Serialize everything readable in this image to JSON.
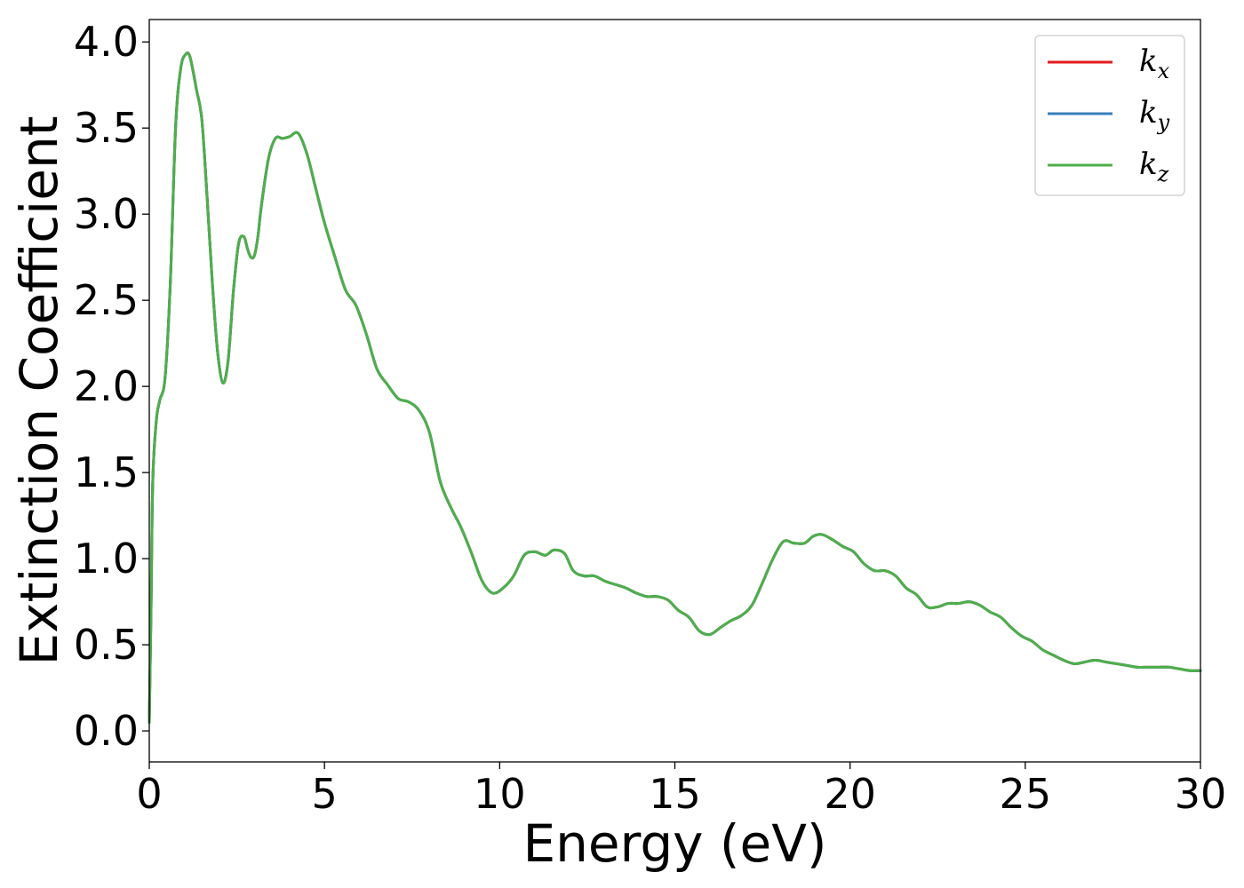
{
  "chart_data": {
    "type": "line",
    "xlabel": "Energy (eV)",
    "ylabel": "Extinction Coefficient",
    "xlim": [
      0,
      30
    ],
    "ylim": [
      -0.18,
      4.13
    ],
    "xticks": [
      0,
      5,
      10,
      15,
      20,
      25,
      30
    ],
    "xtick_labels": [
      "0",
      "5",
      "10",
      "15",
      "20",
      "25",
      "30"
    ],
    "yticks": [
      0.0,
      0.5,
      1.0,
      1.5,
      2.0,
      2.5,
      3.0,
      3.5,
      4.0
    ],
    "ytick_labels": [
      "0.0",
      "0.5",
      "1.0",
      "1.5",
      "2.0",
      "2.5",
      "3.0",
      "3.5",
      "4.0"
    ],
    "grid": false,
    "legend_position": "top-right",
    "x": [
      0.0,
      0.05,
      0.1,
      0.2,
      0.3,
      0.45,
      0.6,
      0.75,
      0.9,
      1.05,
      1.15,
      1.25,
      1.35,
      1.5,
      1.65,
      1.8,
      1.95,
      2.1,
      2.25,
      2.4,
      2.55,
      2.7,
      2.8,
      2.9,
      3.0,
      3.1,
      3.2,
      3.4,
      3.6,
      3.8,
      4.0,
      4.25,
      4.5,
      4.75,
      5.0,
      5.3,
      5.6,
      5.9,
      6.2,
      6.5,
      6.8,
      7.1,
      7.4,
      7.7,
      8.0,
      8.3,
      8.6,
      8.9,
      9.2,
      9.5,
      9.8,
      10.1,
      10.4,
      10.7,
      11.0,
      11.3,
      11.55,
      11.85,
      12.1,
      12.4,
      12.7,
      13.0,
      13.3,
      13.6,
      13.9,
      14.2,
      14.5,
      14.8,
      15.1,
      15.4,
      15.7,
      16.0,
      16.3,
      16.6,
      16.9,
      17.2,
      17.5,
      17.8,
      18.1,
      18.4,
      18.7,
      18.95,
      19.2,
      19.5,
      19.8,
      20.1,
      20.4,
      20.7,
      21.0,
      21.3,
      21.6,
      21.9,
      22.2,
      22.5,
      22.8,
      23.1,
      23.4,
      23.7,
      24.0,
      24.3,
      24.6,
      24.9,
      25.2,
      25.5,
      25.8,
      26.1,
      26.4,
      26.7,
      27.0,
      27.3,
      27.6,
      27.9,
      28.2,
      28.5,
      28.8,
      29.1,
      29.4,
      29.7,
      30.0
    ],
    "series": [
      {
        "name": "k_x",
        "color": "#e41a1c",
        "values": [
          0.05,
          0.7,
          1.45,
          1.8,
          1.92,
          2.05,
          2.6,
          3.5,
          3.85,
          3.93,
          3.92,
          3.83,
          3.72,
          3.55,
          3.1,
          2.6,
          2.2,
          2.02,
          2.15,
          2.55,
          2.83,
          2.87,
          2.8,
          2.75,
          2.76,
          2.87,
          3.05,
          3.32,
          3.44,
          3.44,
          3.45,
          3.47,
          3.35,
          3.15,
          2.95,
          2.75,
          2.56,
          2.47,
          2.3,
          2.1,
          2.01,
          1.93,
          1.91,
          1.86,
          1.73,
          1.45,
          1.3,
          1.18,
          1.03,
          0.87,
          0.8,
          0.83,
          0.9,
          1.02,
          1.04,
          1.02,
          1.05,
          1.03,
          0.93,
          0.9,
          0.9,
          0.87,
          0.85,
          0.83,
          0.8,
          0.78,
          0.78,
          0.76,
          0.7,
          0.66,
          0.58,
          0.56,
          0.6,
          0.64,
          0.67,
          0.73,
          0.86,
          1.0,
          1.1,
          1.09,
          1.09,
          1.13,
          1.14,
          1.11,
          1.07,
          1.04,
          0.97,
          0.93,
          0.93,
          0.9,
          0.83,
          0.79,
          0.72,
          0.72,
          0.74,
          0.74,
          0.75,
          0.73,
          0.69,
          0.66,
          0.6,
          0.55,
          0.52,
          0.47,
          0.44,
          0.41,
          0.39,
          0.4,
          0.41,
          0.4,
          0.39,
          0.38,
          0.37,
          0.37,
          0.37,
          0.37,
          0.36,
          0.35,
          0.35
        ]
      },
      {
        "name": "k_y",
        "color": "#377eb8",
        "values": [
          0.05,
          0.7,
          1.45,
          1.8,
          1.92,
          2.05,
          2.6,
          3.5,
          3.85,
          3.93,
          3.92,
          3.83,
          3.72,
          3.55,
          3.1,
          2.6,
          2.2,
          2.02,
          2.15,
          2.55,
          2.83,
          2.87,
          2.8,
          2.75,
          2.76,
          2.87,
          3.05,
          3.32,
          3.44,
          3.44,
          3.45,
          3.47,
          3.35,
          3.15,
          2.95,
          2.75,
          2.56,
          2.47,
          2.3,
          2.1,
          2.01,
          1.93,
          1.91,
          1.86,
          1.73,
          1.45,
          1.3,
          1.18,
          1.03,
          0.87,
          0.8,
          0.83,
          0.9,
          1.02,
          1.04,
          1.02,
          1.05,
          1.03,
          0.93,
          0.9,
          0.9,
          0.87,
          0.85,
          0.83,
          0.8,
          0.78,
          0.78,
          0.76,
          0.7,
          0.66,
          0.58,
          0.56,
          0.6,
          0.64,
          0.67,
          0.73,
          0.86,
          1.0,
          1.1,
          1.09,
          1.09,
          1.13,
          1.14,
          1.11,
          1.07,
          1.04,
          0.97,
          0.93,
          0.93,
          0.9,
          0.83,
          0.79,
          0.72,
          0.72,
          0.74,
          0.74,
          0.75,
          0.73,
          0.69,
          0.66,
          0.6,
          0.55,
          0.52,
          0.47,
          0.44,
          0.41,
          0.39,
          0.4,
          0.41,
          0.4,
          0.39,
          0.38,
          0.37,
          0.37,
          0.37,
          0.37,
          0.36,
          0.35,
          0.35
        ]
      },
      {
        "name": "k_z",
        "color": "#4daf4a",
        "values": [
          0.05,
          0.7,
          1.45,
          1.8,
          1.92,
          2.05,
          2.6,
          3.5,
          3.85,
          3.93,
          3.92,
          3.83,
          3.72,
          3.55,
          3.1,
          2.6,
          2.2,
          2.02,
          2.15,
          2.55,
          2.83,
          2.87,
          2.8,
          2.75,
          2.76,
          2.87,
          3.05,
          3.32,
          3.44,
          3.44,
          3.45,
          3.47,
          3.35,
          3.15,
          2.95,
          2.75,
          2.56,
          2.47,
          2.3,
          2.1,
          2.01,
          1.93,
          1.91,
          1.86,
          1.73,
          1.45,
          1.3,
          1.18,
          1.03,
          0.87,
          0.8,
          0.83,
          0.9,
          1.02,
          1.04,
          1.02,
          1.05,
          1.03,
          0.93,
          0.9,
          0.9,
          0.87,
          0.85,
          0.83,
          0.8,
          0.78,
          0.78,
          0.76,
          0.7,
          0.66,
          0.58,
          0.56,
          0.6,
          0.64,
          0.67,
          0.73,
          0.86,
          1.0,
          1.1,
          1.09,
          1.09,
          1.13,
          1.14,
          1.11,
          1.07,
          1.04,
          0.97,
          0.93,
          0.93,
          0.9,
          0.83,
          0.79,
          0.72,
          0.72,
          0.74,
          0.74,
          0.75,
          0.73,
          0.69,
          0.66,
          0.6,
          0.55,
          0.52,
          0.47,
          0.44,
          0.41,
          0.39,
          0.4,
          0.41,
          0.4,
          0.39,
          0.38,
          0.37,
          0.37,
          0.37,
          0.37,
          0.36,
          0.35,
          0.35
        ]
      }
    ],
    "legend": [
      {
        "base": "k",
        "sub": "x",
        "color": "#e41a1c"
      },
      {
        "base": "k",
        "sub": "y",
        "color": "#377eb8"
      },
      {
        "base": "k",
        "sub": "z",
        "color": "#4daf4a"
      }
    ]
  }
}
